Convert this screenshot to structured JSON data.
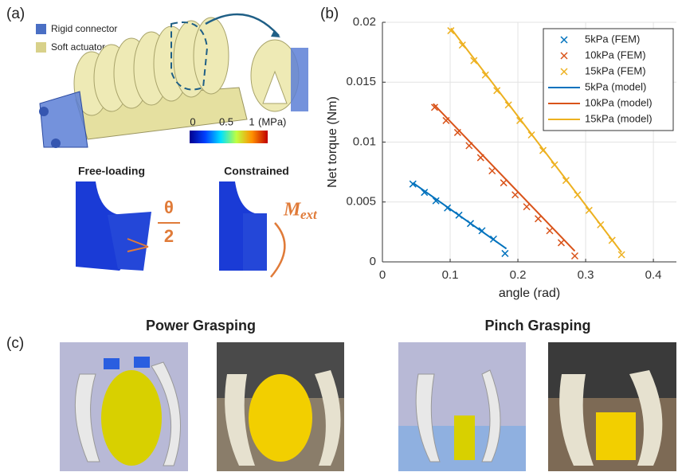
{
  "panel_a": {
    "label": "(a)",
    "legend": [
      "Rigid connector",
      "Soft actuator"
    ],
    "colorbar": {
      "ticks": [
        0,
        0.5,
        1
      ],
      "unit": "(MPa)"
    },
    "cases": [
      "Free-loading",
      "Constrained"
    ],
    "angle_label": {
      "numerator": "θ",
      "denominator": "2"
    },
    "moment_label": {
      "symbol": "M",
      "subscript": "ext"
    }
  },
  "panel_b": {
    "label": "(b)"
  },
  "chart_data": {
    "type": "scatter",
    "xlabel": "angle (rad)",
    "ylabel": "Net torque (Nm)",
    "xlim": [
      0,
      0.434
    ],
    "ylim": [
      0,
      0.02
    ],
    "xticks": [
      0,
      0.1,
      0.2,
      0.3,
      0.4
    ],
    "yticks": [
      0,
      0.005,
      0.01,
      0.015,
      0.02
    ],
    "grid": true,
    "legend": "upper right",
    "series": [
      {
        "name": "5kPa (FEM)",
        "color": "#0072bd",
        "style": "marker",
        "x": [
          0.045,
          0.062,
          0.079,
          0.096,
          0.113,
          0.13,
          0.147,
          0.164,
          0.181
        ],
        "values": [
          0.0065,
          0.0058,
          0.0051,
          0.0045,
          0.0039,
          0.0032,
          0.0026,
          0.0019,
          0.0007
        ]
      },
      {
        "name": "10kPa (FEM)",
        "color": "#d95319",
        "style": "marker",
        "x": [
          0.077,
          0.094,
          0.111,
          0.128,
          0.145,
          0.162,
          0.179,
          0.196,
          0.213,
          0.23,
          0.247,
          0.264,
          0.284
        ],
        "values": [
          0.0129,
          0.0118,
          0.0108,
          0.0097,
          0.0087,
          0.0076,
          0.0066,
          0.0056,
          0.0046,
          0.0036,
          0.0026,
          0.0016,
          0.0005
        ]
      },
      {
        "name": "15kPa (FEM)",
        "color": "#edb120",
        "style": "marker",
        "x": [
          0.101,
          0.118,
          0.135,
          0.152,
          0.169,
          0.186,
          0.203,
          0.22,
          0.237,
          0.254,
          0.271,
          0.288,
          0.305,
          0.322,
          0.339,
          0.353
        ],
        "values": [
          0.0193,
          0.0181,
          0.0168,
          0.0156,
          0.0143,
          0.0131,
          0.0118,
          0.0106,
          0.0093,
          0.0081,
          0.0068,
          0.0056,
          0.0043,
          0.0031,
          0.0018,
          0.0006
        ]
      },
      {
        "name": "5kPa (model)",
        "color": "#0072bd",
        "style": "line",
        "x": [
          0.045,
          0.183
        ],
        "values": [
          0.0066,
          0.0011
        ]
      },
      {
        "name": "10kPa (model)",
        "color": "#d95319",
        "style": "line",
        "x": [
          0.075,
          0.284
        ],
        "values": [
          0.0132,
          0.0009
        ]
      },
      {
        "name": "15kPa (model)",
        "color": "#edb120",
        "style": "line",
        "x": [
          0.101,
          0.353
        ],
        "values": [
          0.0195,
          0.0008
        ]
      }
    ]
  },
  "panel_c": {
    "label": "(c)",
    "titles": [
      "Power Grasping",
      "Pinch Grasping"
    ]
  }
}
